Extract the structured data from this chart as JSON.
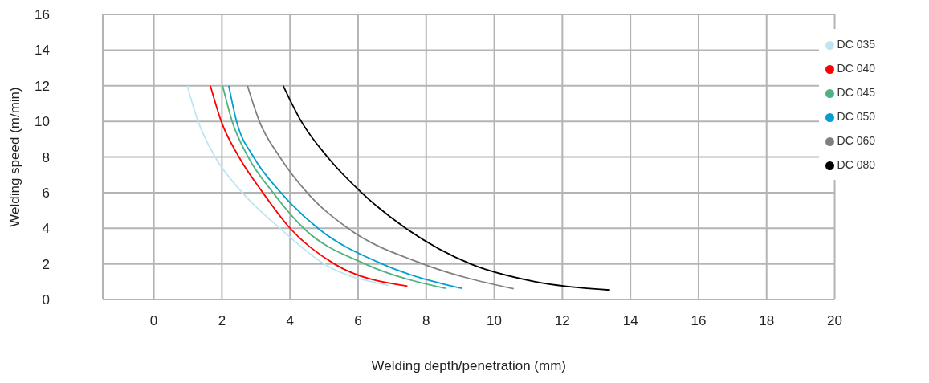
{
  "chart_data": {
    "type": "line",
    "xlabel": "Welding depth/penetration (mm)",
    "ylabel": "Welding speed (m/min)",
    "xlim": [
      -1.5,
      20
    ],
    "xticks": [
      0,
      2,
      4,
      6,
      8,
      10,
      12,
      14,
      16,
      18,
      20
    ],
    "ylim": [
      0,
      16
    ],
    "yticks": [
      0,
      2,
      4,
      6,
      8,
      10,
      12,
      14,
      16
    ],
    "grid": true,
    "legend": "top right",
    "marker": "none",
    "line_style": "solid",
    "series": [
      {
        "name": "DC 035",
        "color": "#bfe6f0",
        "x": [
          0.98,
          1.3,
          1.8,
          2.6,
          3.7,
          5.0,
          6.9
        ],
        "values": [
          12,
          10,
          8,
          6,
          4,
          2,
          0.8
        ]
      },
      {
        "name": "DC 040",
        "color": "#ff0000",
        "x": [
          1.66,
          1.98,
          2.5,
          3.2,
          4.0,
          5.3,
          7.45
        ],
        "values": [
          12,
          10,
          8,
          6,
          4,
          2,
          0.75
        ]
      },
      {
        "name": "DC 045",
        "color": "#4db380",
        "x": [
          2.02,
          2.3,
          2.77,
          3.5,
          4.4,
          6.2,
          8.57
        ],
        "values": [
          12,
          10,
          8,
          6,
          4,
          2,
          0.62
        ]
      },
      {
        "name": "DC 050",
        "color": "#00a0d0",
        "x": [
          2.2,
          2.43,
          2.93,
          3.73,
          4.82,
          6.7,
          9.05
        ],
        "values": [
          12,
          10,
          8,
          6,
          4,
          2,
          0.62
        ]
      },
      {
        "name": "DC 060",
        "color": "#808080",
        "x": [
          2.75,
          3.1,
          3.7,
          4.5,
          5.7,
          7.9,
          10.57
        ],
        "values": [
          12,
          10,
          8,
          6,
          4,
          2,
          0.6
        ]
      },
      {
        "name": "DC 080",
        "color": "#000000",
        "x": [
          3.8,
          4.33,
          5.1,
          6.1,
          7.4,
          9.3,
          11.2,
          13.4
        ],
        "values": [
          12,
          10,
          8,
          6,
          4,
          2,
          1,
          0.53
        ]
      }
    ]
  }
}
